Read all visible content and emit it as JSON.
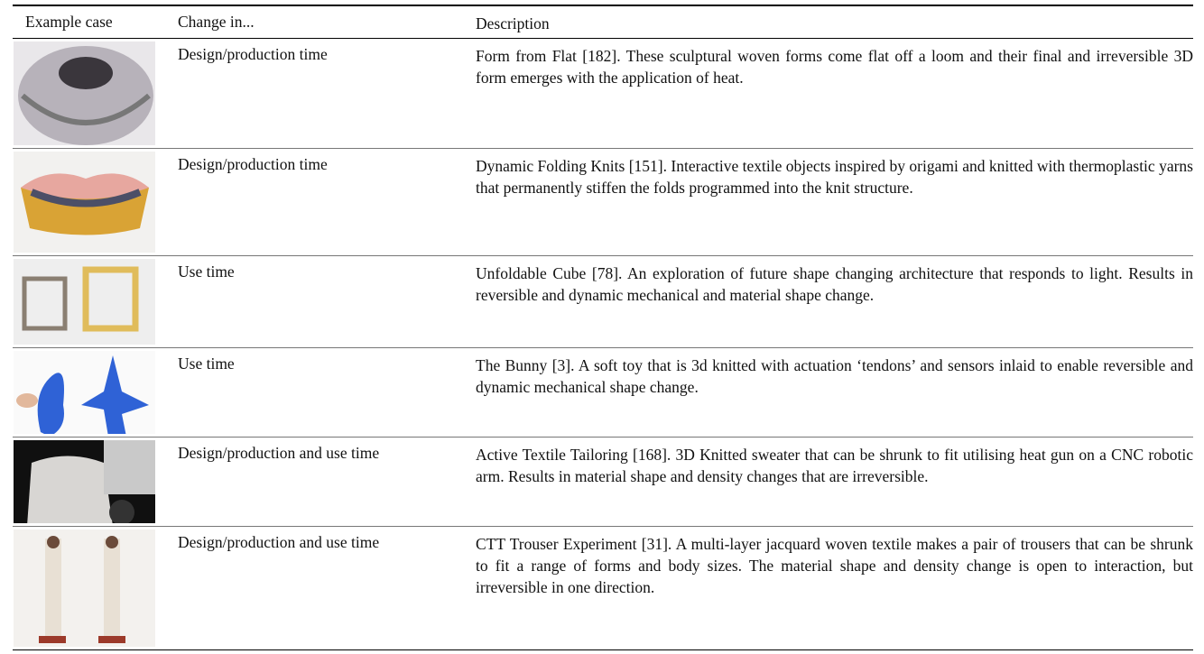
{
  "table": {
    "header": [
      "Example case",
      "Change in...",
      "Description"
    ],
    "rows": [
      {
        "change": "Design/production time",
        "description": "Form from Flat [182]. These sculptural woven forms come flat off a loom and their final and irreversible 3D form emerges with the application of heat."
      },
      {
        "change": "Design/production time",
        "description": "Dynamic Folding Knits [151]. Interactive textile objects inspired by origami and knitted with thermoplastic yarns that permanently stiffen the folds programmed into the knit structure."
      },
      {
        "change": "Use time",
        "description": "Unfoldable Cube [78]. An exploration of future shape changing architecture that responds to light. Results in reversible and dynamic mechanical and material shape change."
      },
      {
        "change": "Use time",
        "description": "The Bunny [3]. A soft toy that is 3d knitted with actuation ‘tendons’ and sensors inlaid to enable reversible and dynamic mechanical shape change."
      },
      {
        "change": "Design/production and use time",
        "description": "Active Textile Tailoring [168]. 3D Knitted sweater that can be shrunk to fit utilising heat gun on a CNC robotic arm. Results in material shape and density changes that are irreversible."
      },
      {
        "change": "Design/production and use time",
        "description": "CTT Trouser Experiment [31]. A multi-layer jacquard woven textile makes a pair of trousers that can be shrunk to fit a range of forms and body sizes. The material shape and density change is open to interaction, but irreversible in one direction."
      }
    ]
  }
}
